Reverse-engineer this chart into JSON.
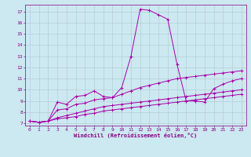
{
  "xlabel": "Windchill (Refroidissement éolien,°C)",
  "bg_color": "#cce8f0",
  "grid_color": "#b0c8d0",
  "line_color": "#aa00aa",
  "xlim": [
    -0.5,
    23.5
  ],
  "ylim": [
    6.8,
    17.6
  ],
  "xticks": [
    0,
    1,
    2,
    3,
    4,
    5,
    6,
    7,
    8,
    9,
    10,
    11,
    12,
    13,
    14,
    15,
    16,
    17,
    18,
    19,
    20,
    21,
    22,
    23
  ],
  "yticks": [
    7,
    8,
    9,
    10,
    11,
    12,
    13,
    14,
    15,
    16,
    17
  ],
  "line1_x": [
    0,
    1,
    2,
    3,
    4,
    5,
    6,
    7,
    8,
    9,
    10,
    11,
    12,
    13,
    14,
    15,
    16,
    17,
    18,
    19,
    20,
    21,
    22,
    23
  ],
  "line1_y": [
    7.2,
    7.1,
    7.2,
    8.9,
    8.7,
    9.4,
    9.5,
    9.9,
    9.4,
    9.3,
    10.2,
    13.0,
    17.2,
    17.1,
    16.7,
    16.3,
    12.3,
    9.0,
    9.0,
    8.9,
    10.1,
    10.5,
    10.8,
    11.0
  ],
  "line2_x": [
    0,
    1,
    2,
    3,
    4,
    5,
    6,
    7,
    8,
    9,
    10,
    11,
    12,
    13,
    14,
    15,
    16,
    17,
    18,
    19,
    20,
    21,
    22,
    23
  ],
  "line2_y": [
    7.2,
    7.1,
    7.2,
    8.2,
    8.3,
    8.7,
    8.8,
    9.1,
    9.2,
    9.3,
    9.6,
    9.9,
    10.2,
    10.4,
    10.6,
    10.8,
    11.0,
    11.1,
    11.2,
    11.3,
    11.4,
    11.5,
    11.6,
    11.7
  ],
  "line3_x": [
    0,
    1,
    2,
    3,
    4,
    5,
    6,
    7,
    8,
    9,
    10,
    11,
    12,
    13,
    14,
    15,
    16,
    17,
    18,
    19,
    20,
    21,
    22,
    23
  ],
  "line3_y": [
    7.2,
    7.1,
    7.2,
    7.5,
    7.7,
    7.9,
    8.1,
    8.3,
    8.5,
    8.6,
    8.7,
    8.8,
    8.9,
    9.0,
    9.1,
    9.2,
    9.3,
    9.4,
    9.5,
    9.6,
    9.7,
    9.8,
    9.9,
    10.0
  ],
  "line4_x": [
    0,
    1,
    2,
    3,
    4,
    5,
    6,
    7,
    8,
    9,
    10,
    11,
    12,
    13,
    14,
    15,
    16,
    17,
    18,
    19,
    20,
    21,
    22,
    23
  ],
  "line4_y": [
    7.2,
    7.1,
    7.2,
    7.4,
    7.5,
    7.6,
    7.8,
    7.9,
    8.1,
    8.2,
    8.3,
    8.4,
    8.5,
    8.6,
    8.7,
    8.8,
    8.9,
    9.0,
    9.1,
    9.2,
    9.3,
    9.4,
    9.5,
    9.6
  ],
  "tick_fontsize": 4.5,
  "xlabel_fontsize": 5.0,
  "label_color": "#880088"
}
